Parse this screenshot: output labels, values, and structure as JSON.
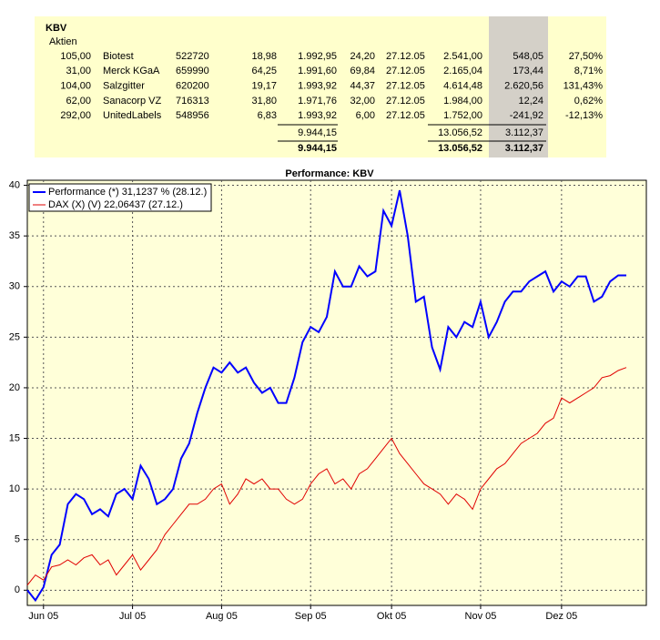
{
  "table": {
    "title": "KBV",
    "section": "Aktien",
    "rows": [
      [
        "105,00",
        "Biotest",
        "522720",
        "18,98",
        "1.992,95",
        "24,20",
        "27.12.05",
        "2.541,00",
        "548,05",
        "27,50%"
      ],
      [
        "31,00",
        "Merck KGaA",
        "659990",
        "64,25",
        "1.991,60",
        "69,84",
        "27.12.05",
        "2.165,04",
        "173,44",
        "8,71%"
      ],
      [
        "104,00",
        "Salzgitter",
        "620200",
        "19,17",
        "1.993,92",
        "44,37",
        "27.12.05",
        "4.614,48",
        "2.620,56",
        "131,43%"
      ],
      [
        "62,00",
        "Sanacorp VZ",
        "716313",
        "31,80",
        "1.971,76",
        "32,00",
        "27.12.05",
        "1.984,00",
        "12,24",
        "0,62%"
      ],
      [
        "292,00",
        "UnitedLabels",
        "548956",
        "6,83",
        "1.993,92",
        "6,00",
        "27.12.05",
        "1.752,00",
        "-241,92",
        "-12,13%"
      ]
    ],
    "subtotal": {
      "purchase_value": "9.944,15",
      "current_value": "13.056,52",
      "gain": "3.112,37"
    },
    "total": {
      "purchase_value": "9.944,15",
      "current_value": "13.056,52",
      "gain": "3.112,37"
    }
  },
  "chart_data": {
    "type": "line",
    "title": "Performance: KBV",
    "categories": [
      null,
      null,
      "Jun 05",
      null,
      null,
      null,
      null,
      null,
      null,
      null,
      null,
      null,
      null,
      "Jul 05",
      null,
      null,
      null,
      null,
      null,
      null,
      null,
      null,
      null,
      null,
      "Aug 05",
      null,
      null,
      null,
      null,
      null,
      null,
      null,
      null,
      null,
      null,
      "Sep 05",
      null,
      null,
      null,
      null,
      null,
      null,
      null,
      null,
      null,
      "Okt 05",
      null,
      null,
      null,
      null,
      null,
      null,
      null,
      null,
      null,
      null,
      "Nov 05",
      null,
      null,
      null,
      null,
      null,
      null,
      null,
      null,
      null,
      "Dez 05",
      null,
      null,
      null,
      null,
      null,
      null,
      null,
      null
    ],
    "series": [
      {
        "name": "Performance (*) 31,1237 % (28.12.)",
        "color": "#0000ff",
        "values": [
          0,
          -1,
          0.3,
          3.5,
          4.5,
          8.5,
          9.5,
          9,
          7.5,
          8,
          7.3,
          9.5,
          10,
          9,
          12.3,
          11,
          8.5,
          9,
          10,
          13,
          14.5,
          17.5,
          20,
          22,
          21.5,
          22.5,
          21.5,
          22,
          20.5,
          19.5,
          20,
          18.5,
          18.5,
          21,
          24.5,
          26,
          25.5,
          27,
          31.5,
          30,
          30,
          32,
          31,
          31.5,
          37.5,
          36,
          39.5,
          35,
          28.5,
          29,
          24,
          21.8,
          26,
          25,
          26.5,
          26,
          28.5,
          25,
          26.5,
          28.5,
          29.5,
          29.5,
          30.5,
          31,
          31.5,
          29.5,
          30.5,
          30,
          31,
          31,
          28.5,
          29,
          30.5,
          31.1,
          31.1
        ]
      },
      {
        "name": "DAX (X) (V) 22,06437 (27.12.)",
        "color": "#e00000",
        "values": [
          0.5,
          1.5,
          1,
          2.3,
          2.5,
          3,
          2.5,
          3.2,
          3.5,
          2.5,
          3,
          1.5,
          2.5,
          3.5,
          2,
          3,
          4,
          5.5,
          6.5,
          7.5,
          8.5,
          8.5,
          9,
          10,
          10.5,
          8.5,
          9.5,
          11,
          10.5,
          11,
          10,
          10,
          9,
          8.5,
          9,
          10.5,
          11.5,
          12,
          10.5,
          11,
          10,
          11.5,
          12,
          13,
          14,
          15,
          13.5,
          12.5,
          11.5,
          10.5,
          10,
          9.5,
          8.5,
          9.5,
          9,
          8,
          10,
          11,
          12,
          12.5,
          13.5,
          14.5,
          15,
          15.5,
          16.5,
          17,
          19,
          18.5,
          19,
          19.5,
          20,
          21,
          21.2,
          21.7,
          22
        ]
      }
    ],
    "ylim": [
      -1.5,
      40.5
    ],
    "yticks": [
      0,
      5,
      10,
      15,
      20,
      25,
      30,
      35,
      40
    ],
    "grid": true,
    "legend": "top-left"
  }
}
